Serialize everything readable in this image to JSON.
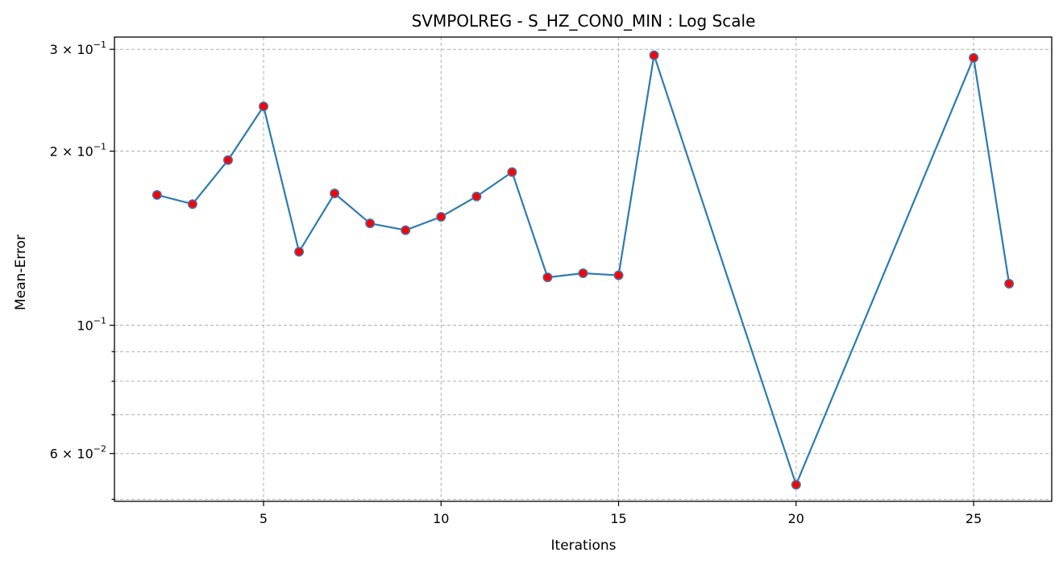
{
  "chart_data": {
    "type": "line",
    "title": "SVMPOLREG - S_HZ_CON0_MIN : Log Scale",
    "xlabel": "Iterations",
    "ylabel": "Mean-Error",
    "yscale": "log",
    "xlim": [
      0.8,
      27.2
    ],
    "ylim": [
      0.0496,
      0.315
    ],
    "x_ticks": [
      5,
      10,
      15,
      20,
      25
    ],
    "y_major_ticks": [
      {
        "value": 0.3,
        "base": "3 × 10",
        "exp": "−1"
      },
      {
        "value": 0.2,
        "base": "2 × 10",
        "exp": "−1"
      },
      {
        "value": 0.1,
        "base": "10",
        "exp": "−1"
      },
      {
        "value": 0.06,
        "base": "6 × 10",
        "exp": "−2"
      }
    ],
    "y_minor_gridlines": [
      0.05,
      0.07,
      0.08,
      0.09
    ],
    "grid": true,
    "line_color": "#2c7bb0",
    "marker_face_color": "#ff0000",
    "marker_edge_color": "#4a6fa5",
    "series": [
      {
        "x": [
          2,
          3,
          4,
          5,
          6,
          7,
          8,
          9,
          10,
          11,
          12,
          13,
          14,
          15,
          16,
          20,
          25,
          26
        ],
        "values": [
          0.168,
          0.162,
          0.193,
          0.239,
          0.134,
          0.169,
          0.15,
          0.146,
          0.154,
          0.167,
          0.184,
          0.121,
          0.123,
          0.122,
          0.293,
          0.053,
          0.29,
          0.118
        ]
      }
    ]
  }
}
